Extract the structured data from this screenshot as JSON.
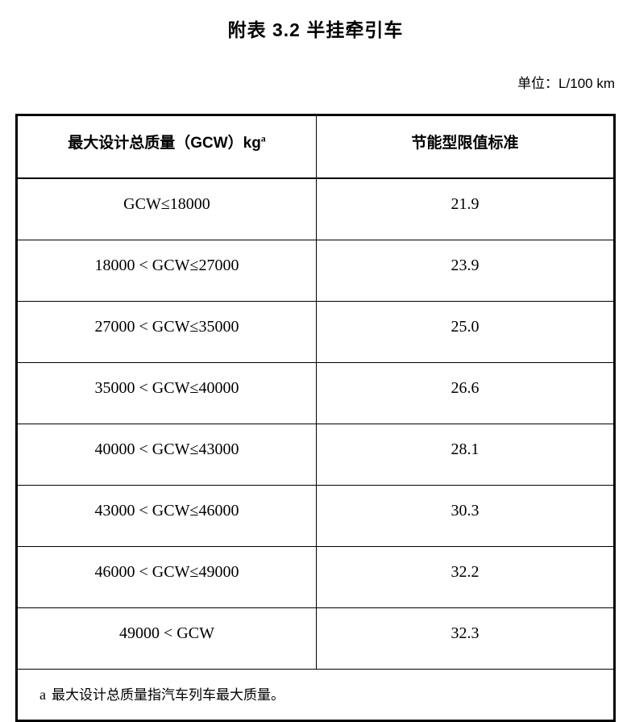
{
  "page": {
    "title": "附表 3.2  半挂牵引车",
    "unit_label": "单位：L/100 km"
  },
  "table": {
    "headers": {
      "col1": "最大设计总质量（GCW）kg",
      "col1_sup": "a",
      "col2": "节能型限值标准"
    },
    "rows": [
      {
        "range": "GCW≤18000",
        "limit": "21.9"
      },
      {
        "range": "18000 < GCW≤27000",
        "limit": "23.9"
      },
      {
        "range": "27000 < GCW≤35000",
        "limit": "25.0"
      },
      {
        "range": "35000 < GCW≤40000",
        "limit": "26.6"
      },
      {
        "range": "40000 < GCW≤43000",
        "limit": "28.1"
      },
      {
        "range": "43000 < GCW≤46000",
        "limit": "30.3"
      },
      {
        "range": "46000 < GCW≤49000",
        "limit": "32.2"
      },
      {
        "range": "49000 < GCW",
        "limit": "32.3"
      }
    ],
    "footnote_marker": "a",
    "footnote_text": "最大设计总质量指汽车列车最大质量。"
  }
}
